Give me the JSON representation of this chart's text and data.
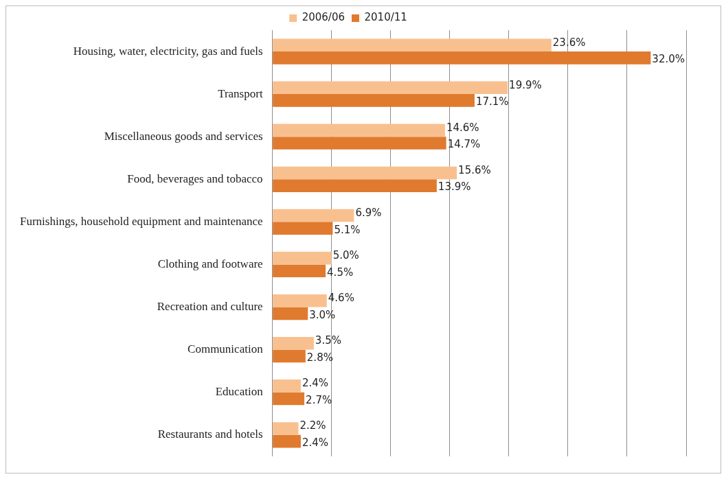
{
  "chart_data": {
    "type": "bar",
    "orientation": "horizontal",
    "categories": [
      "Housing, water, electricity, gas and fuels",
      "Transport",
      "Miscellaneous goods and services",
      "Food, beverages and tobacco",
      "Furnishings, household equipment and maintenance",
      "Clothing and footware",
      "Recreation and culture",
      "Communication",
      "Education",
      "Restaurants and hotels"
    ],
    "series": [
      {
        "name": "2006/06",
        "color": "#f9c08f",
        "values": [
          23.6,
          19.9,
          14.6,
          15.6,
          6.9,
          5.0,
          4.6,
          3.5,
          2.4,
          2.2
        ],
        "value_labels": [
          "23.6%",
          "19.9%",
          "14.6%",
          "15.6%",
          "6.9%",
          "5.0%",
          "4.6%",
          "3.5%",
          "2.4%",
          "2.2%"
        ]
      },
      {
        "name": "2010/11",
        "color": "#e07a2e",
        "values": [
          32.0,
          17.1,
          14.7,
          13.9,
          5.1,
          4.5,
          3.0,
          2.8,
          2.7,
          2.4
        ],
        "value_labels": [
          "32.0%",
          "17.1%",
          "14.7%",
          "13.9%",
          "5.1%",
          "4.5%",
          "3.0%",
          "2.8%",
          "2.7%",
          "2.4%"
        ]
      }
    ],
    "tick_labels": "y",
    "grid": "x",
    "legend": "top"
  }
}
